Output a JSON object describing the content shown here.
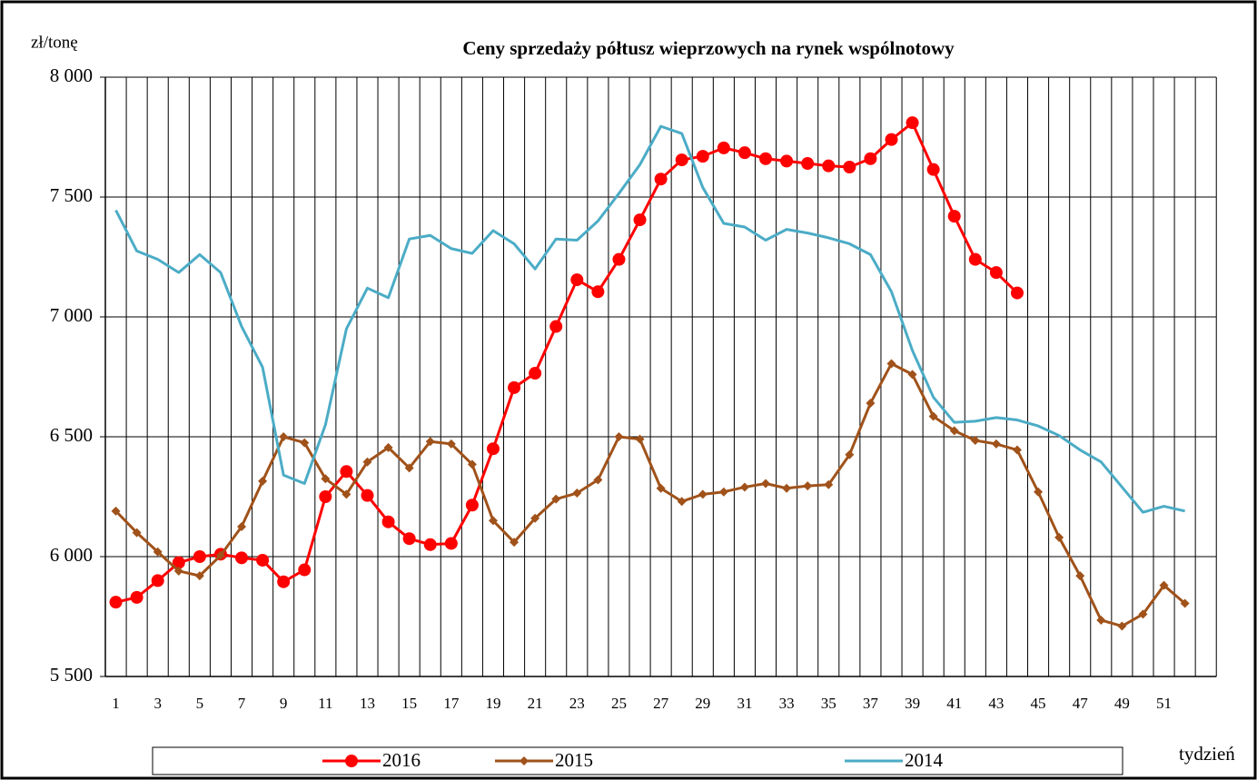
{
  "chart_data": {
    "type": "line",
    "title": "Ceny sprzedaży półtusz wieprzowych  na rynek wspólnotowy",
    "y_label": "zł/tonę",
    "x_label": "tydzień",
    "categories": [
      "1",
      null,
      "3",
      null,
      "5",
      null,
      "7",
      null,
      "9",
      null,
      "11",
      null,
      "13",
      null,
      "15",
      null,
      "17",
      null,
      "19",
      null,
      "21",
      null,
      "23",
      null,
      "25",
      null,
      "27",
      null,
      "29",
      null,
      "31",
      null,
      "33",
      null,
      "35",
      null,
      "37",
      null,
      "39",
      null,
      "41",
      null,
      "43",
      null,
      "45",
      null,
      "47",
      null,
      "49",
      null,
      "51",
      null,
      null
    ],
    "ylim": [
      5500,
      8000
    ],
    "yticks": [
      {
        "value": 5500,
        "label": "5 500"
      },
      {
        "value": 6000,
        "label": "6 000"
      },
      {
        "value": 6500,
        "label": "6 500"
      },
      {
        "value": 7000,
        "label": "7 000"
      },
      {
        "value": 7500,
        "label": "7 500"
      },
      {
        "value": 8000,
        "label": "8 000"
      }
    ],
    "grid": true,
    "legend": "bottom",
    "series": [
      {
        "name": "2016",
        "color": "#ff0000",
        "marker": "circle",
        "values": [
          5810,
          5830,
          5900,
          5975,
          6000,
          6010,
          5995,
          5985,
          5895,
          5945,
          6250,
          6355,
          6255,
          6145,
          6075,
          6050,
          6055,
          6215,
          6450,
          6705,
          6765,
          6960,
          7155,
          7105,
          7240,
          7405,
          7575,
          7655,
          7670,
          7705,
          7685,
          7660,
          7650,
          7640,
          7630,
          7625,
          7660,
          7740,
          7810,
          7615,
          7420,
          7240,
          7185,
          7100,
          null,
          null,
          null,
          null,
          null,
          null,
          null,
          null,
          null
        ]
      },
      {
        "name": "2015",
        "color": "#a0521a",
        "marker": "diamond",
        "values": [
          6190,
          6100,
          6020,
          5940,
          5920,
          6005,
          6125,
          6315,
          6500,
          6475,
          6325,
          6260,
          6395,
          6455,
          6370,
          6480,
          6470,
          6385,
          6150,
          6060,
          6160,
          6240,
          6265,
          6320,
          6500,
          6490,
          6285,
          6230,
          6260,
          6270,
          6290,
          6305,
          6285,
          6295,
          6300,
          6425,
          6640,
          6805,
          6760,
          6585,
          6525,
          6485,
          6470,
          6445,
          6270,
          6080,
          5920,
          5735,
          5710,
          5760,
          5880,
          5805,
          null
        ]
      },
      {
        "name": "2014",
        "color": "#4bacc6",
        "marker": "none",
        "values": [
          7445,
          7275,
          7240,
          7185,
          7260,
          7185,
          6960,
          6790,
          6340,
          6305,
          6550,
          6950,
          7120,
          7080,
          7325,
          7340,
          7285,
          7265,
          7360,
          7305,
          7200,
          7325,
          7320,
          7400,
          7515,
          7635,
          7795,
          7765,
          7540,
          7390,
          7375,
          7320,
          7365,
          7350,
          7330,
          7305,
          7260,
          7105,
          6860,
          6665,
          6560,
          6565,
          6580,
          6570,
          6545,
          6505,
          6445,
          6395,
          6290,
          6185,
          6210,
          6190,
          null
        ]
      }
    ]
  }
}
